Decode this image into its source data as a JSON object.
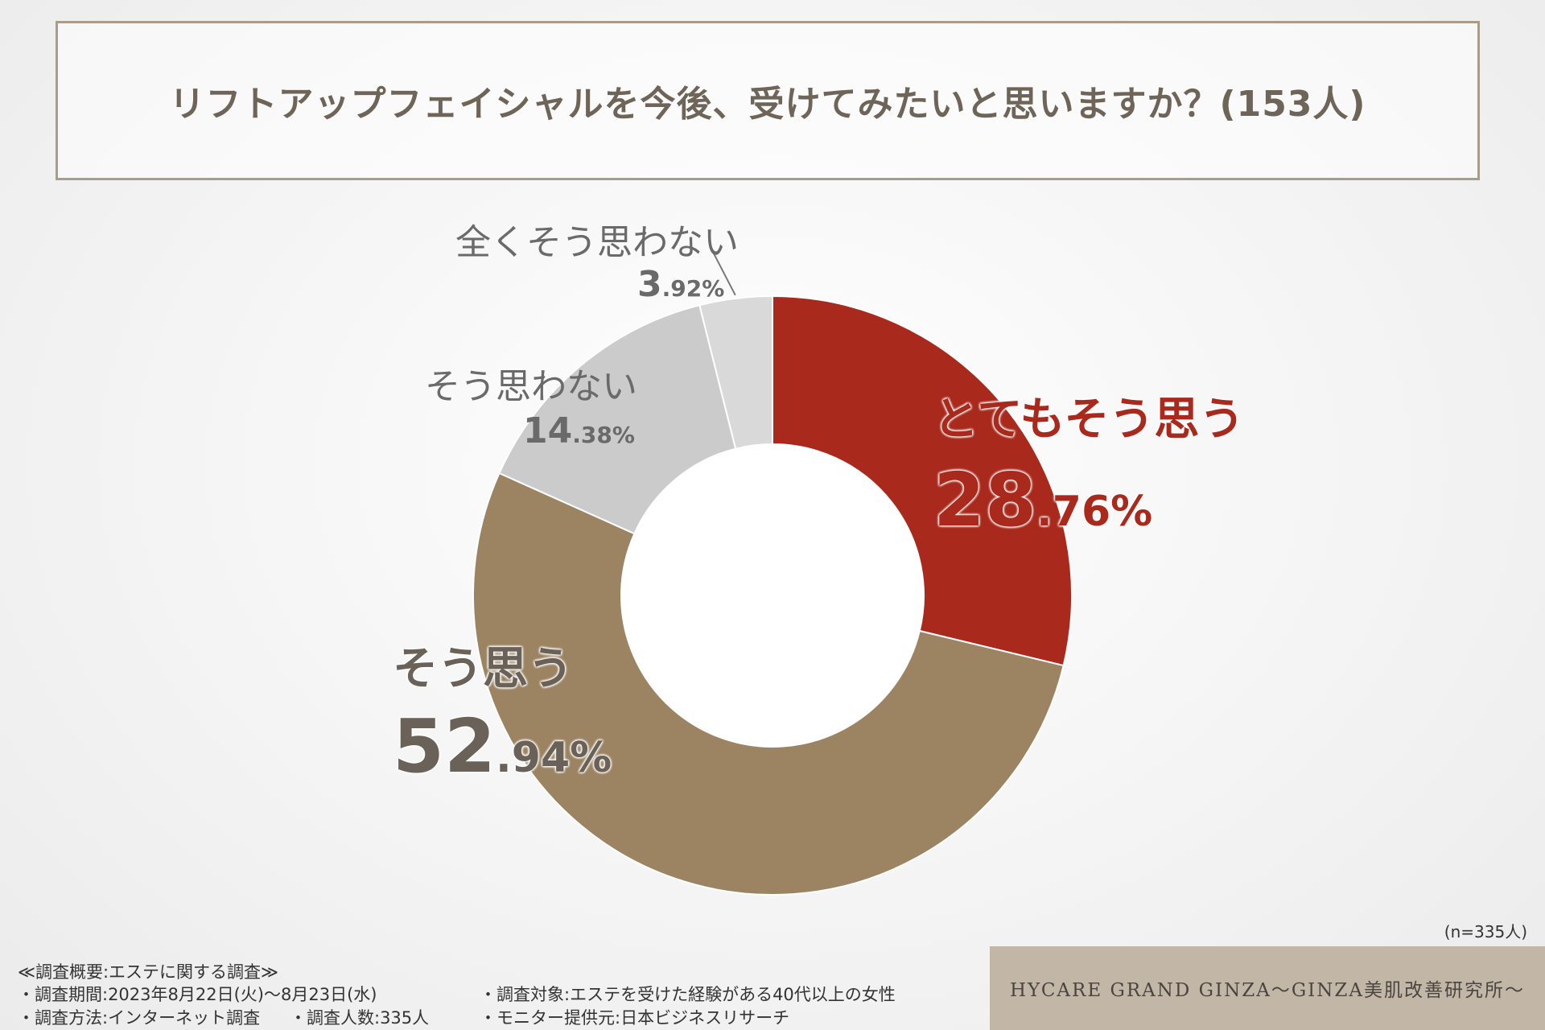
{
  "title": "リフトアップフェイシャルを今後、受けてみたいと思いますか？(153人)",
  "chart_data": {
    "type": "pie",
    "donut": true,
    "title": "リフトアップフェイシャルを今後、受けてみたいと思いますか？(153人)",
    "series": [
      {
        "name": "とてもそう思う",
        "value": 28.76,
        "int": "28",
        "dec": ".76%",
        "color": "#a92a1d"
      },
      {
        "name": "そう思う",
        "value": 52.94,
        "int": "52",
        "dec": ".94%",
        "color": "#9c8462"
      },
      {
        "name": "そう思わない",
        "value": 14.38,
        "int": "14",
        "dec": ".38%",
        "color": "#cbcbcb"
      },
      {
        "name": "全くそう思わない",
        "value": 3.92,
        "int": "3",
        "dec": ".92%",
        "color": "#d9d9d9"
      }
    ]
  },
  "n_note": "(n=335人)",
  "survey": {
    "header": "≪調査概要:エステに関する調査≫",
    "period": "・調査期間:2023年8月22日(火)〜8月23日(水)",
    "method": "・調査方法:インターネット調査",
    "count": "・調査人数:335人",
    "target": "・調査対象:エステを受けた経験がある40代以上の女性",
    "provider": "・モニター提供元:日本ビジネスリサーチ"
  },
  "brand": "HYCARE GRAND GINZA〜GINZA美肌改善研究所〜"
}
